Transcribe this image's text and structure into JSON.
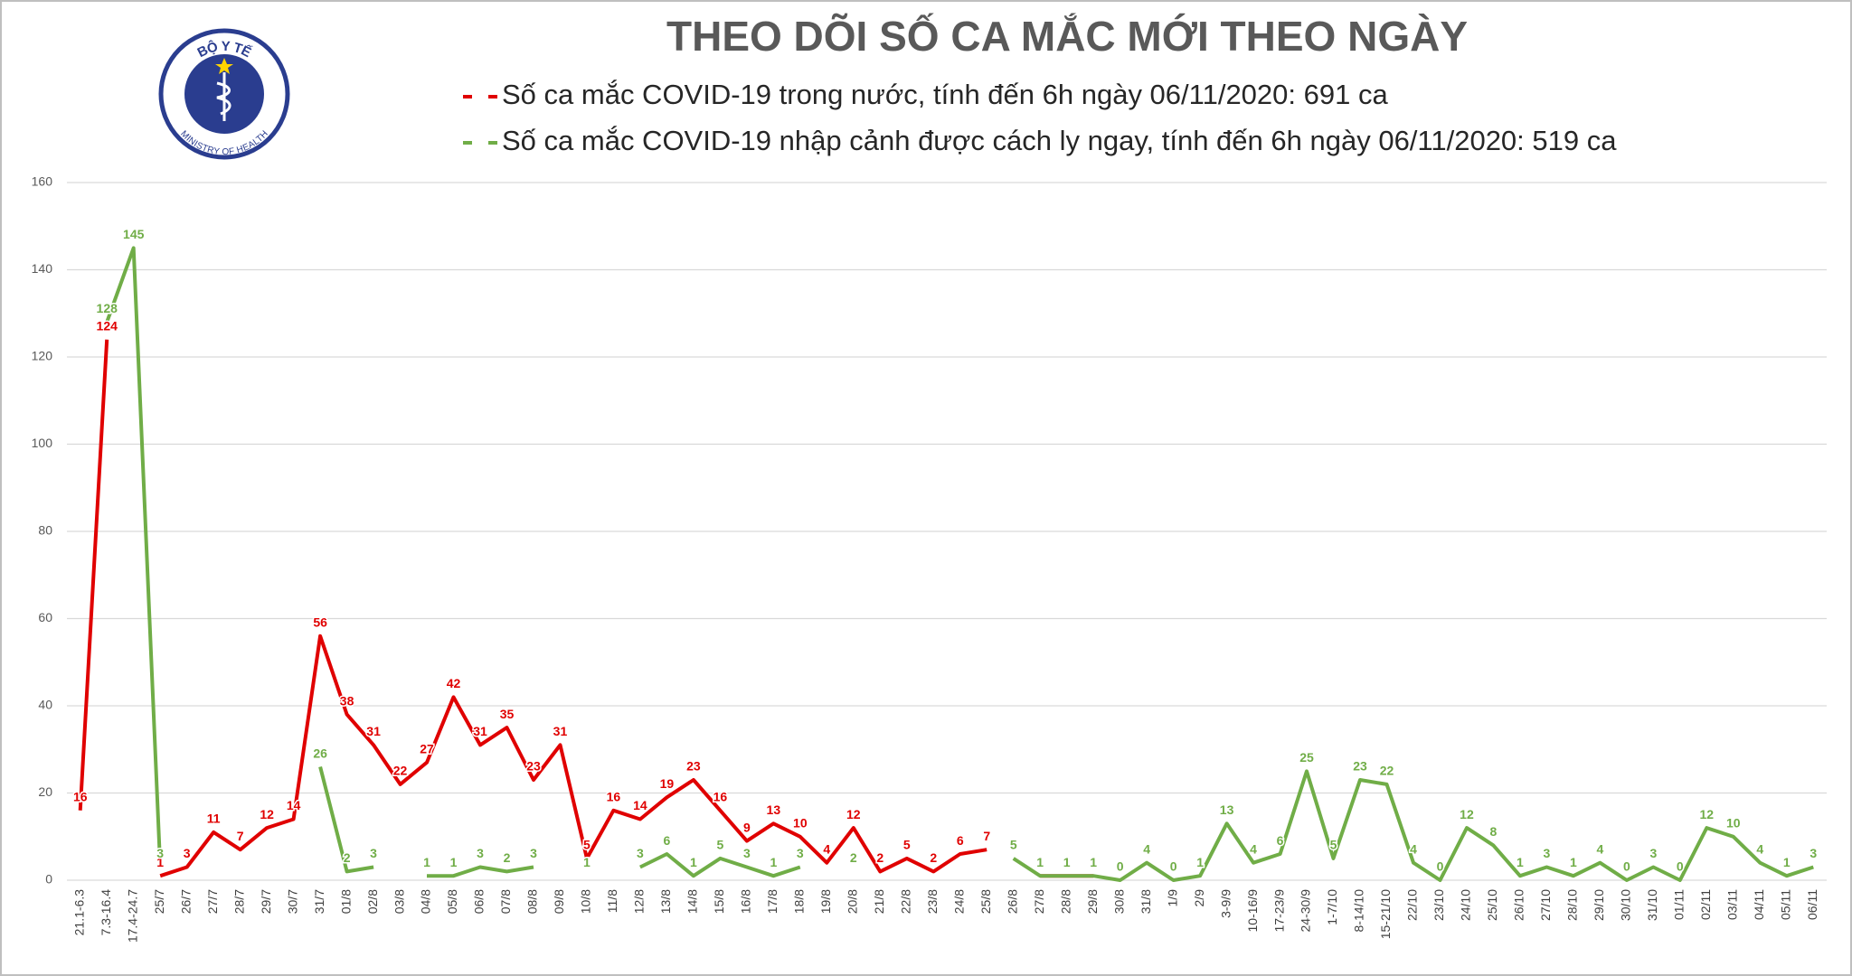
{
  "logo": {
    "top": "BỘ Y TẾ",
    "bottom": "MINISTRY OF HEALTH"
  },
  "chart_data": {
    "type": "line",
    "title": "THEO DÕI SỐ CA MẮC MỚI THEO NGÀY",
    "categories": [
      "21.1-6.3",
      "7.3-16.4",
      "17.4-24.7",
      "25/7",
      "26/7",
      "27/7",
      "28/7",
      "29/7",
      "30/7",
      "31/7",
      "01/8",
      "02/8",
      "03/8",
      "04/8",
      "05/8",
      "06/8",
      "07/8",
      "08/8",
      "09/8",
      "10/8",
      "11/8",
      "12/8",
      "13/8",
      "14/8",
      "15/8",
      "16/8",
      "17/8",
      "18/8",
      "19/8",
      "20/8",
      "21/8",
      "22/8",
      "23/8",
      "24/8",
      "25/8",
      "26/8",
      "27/8",
      "28/8",
      "29/8",
      "30/8",
      "31/8",
      "1/9",
      "2/9",
      "3-9/9",
      "10-16/9",
      "17-23/9",
      "24-30/9",
      "1-7/10",
      "8-14/10",
      "15-21/10",
      "22/10",
      "23/10",
      "24/10",
      "25/10",
      "26/10",
      "27/10",
      "28/10",
      "29/10",
      "30/10",
      "31/10",
      "01/11",
      "02/11",
      "03/11",
      "04/11",
      "05/11",
      "06/11"
    ],
    "series": [
      {
        "name": "Số ca mắc COVID-19 trong nước, tính đến 6h ngày 06/11/2020: 691 ca",
        "color": "#e00000",
        "values": [
          16,
          124,
          null,
          1,
          3,
          11,
          7,
          12,
          14,
          56,
          38,
          31,
          22,
          27,
          42,
          31,
          35,
          23,
          31,
          5,
          16,
          14,
          19,
          23,
          16,
          9,
          13,
          10,
          4,
          12,
          2,
          5,
          2,
          6,
          7,
          null,
          1,
          1,
          1,
          null,
          null,
          null,
          1,
          null,
          null,
          null,
          null,
          null,
          null,
          null,
          null,
          null,
          null,
          null,
          null,
          null,
          null,
          null,
          null,
          null,
          null,
          null,
          null,
          null,
          null,
          null
        ]
      },
      {
        "name": "Số ca mắc COVID-19 nhập cảnh được cách ly ngay, tính đến 6h ngày 06/11/2020: 519 ca",
        "color": "#70ad47",
        "values": [
          null,
          128,
          145,
          3,
          null,
          null,
          null,
          null,
          null,
          26,
          2,
          3,
          null,
          1,
          1,
          3,
          2,
          3,
          null,
          1,
          null,
          3,
          6,
          1,
          5,
          3,
          1,
          3,
          null,
          2,
          null,
          null,
          null,
          null,
          null,
          5,
          1,
          1,
          1,
          0,
          4,
          0,
          1,
          13,
          4,
          6,
          25,
          5,
          23,
          22,
          4,
          0,
          12,
          8,
          1,
          3,
          1,
          4,
          0,
          3,
          0,
          12,
          10,
          4,
          1,
          3
        ]
      }
    ],
    "ylim": [
      0,
      160
    ],
    "yticks": [
      0,
      20,
      40,
      60,
      80,
      100,
      120,
      140,
      160
    ],
    "grid": true
  }
}
